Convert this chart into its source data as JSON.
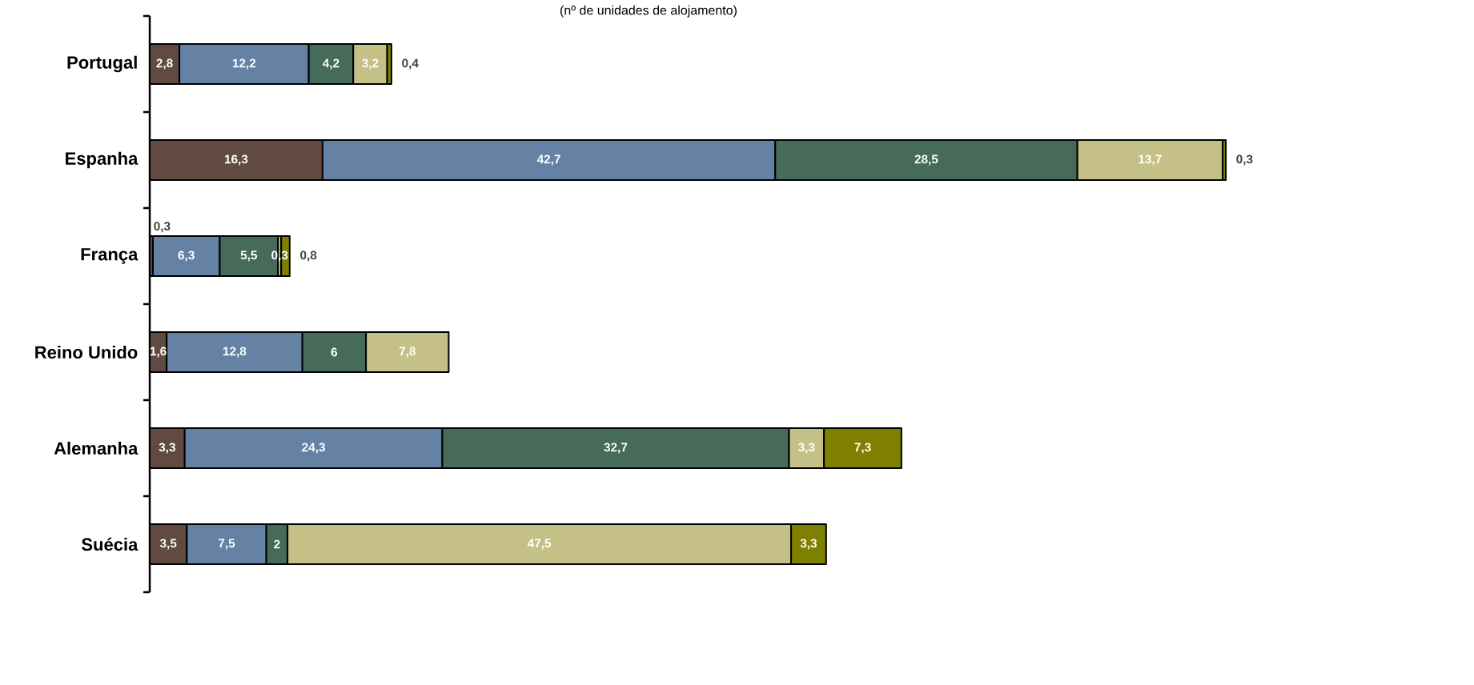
{
  "chart_data": {
    "type": "bar",
    "orientation": "horizontal",
    "stacked": true,
    "tick_labels": "y",
    "subtitle": "(nº de unidades de alojamento)",
    "categories": [
      "Portugal",
      "Espanha",
      "França",
      "Reino Unido",
      "Alemanha",
      "Suécia"
    ],
    "series": [
      {
        "color": "#604a42",
        "values": [
          2.8,
          16.3,
          0.3,
          1.6,
          3.3,
          3.5
        ],
        "value_labels": [
          "2,8",
          "16,3",
          "0,3",
          "1,6",
          "3,3",
          "3,5"
        ]
      },
      {
        "color": "#6582a4",
        "values": [
          12.2,
          42.7,
          6.3,
          12.8,
          24.3,
          7.5
        ],
        "value_labels": [
          "12,2",
          "42,7",
          "6,3",
          "12,8",
          "24,3",
          "7,5"
        ]
      },
      {
        "color": "#466b5a",
        "values": [
          4.2,
          28.5,
          5.5,
          6,
          32.7,
          2
        ],
        "value_labels": [
          "4,2",
          "28,5",
          "5,5",
          "6",
          "32,7",
          "2"
        ]
      },
      {
        "color": "#c4c086",
        "values": [
          3.2,
          13.7,
          0.3,
          7.8,
          3.3,
          47.5
        ],
        "value_labels": [
          "3,2",
          "13,7",
          "0,3",
          "7,8",
          "3,3",
          "47,5"
        ]
      },
      {
        "color": "#808000",
        "values": [
          0.4,
          0.3,
          0.8,
          null,
          7.3,
          3.3
        ],
        "value_labels": [
          "0,4",
          "0,3",
          "0,8",
          null,
          "7,3",
          "3,3"
        ]
      }
    ]
  }
}
